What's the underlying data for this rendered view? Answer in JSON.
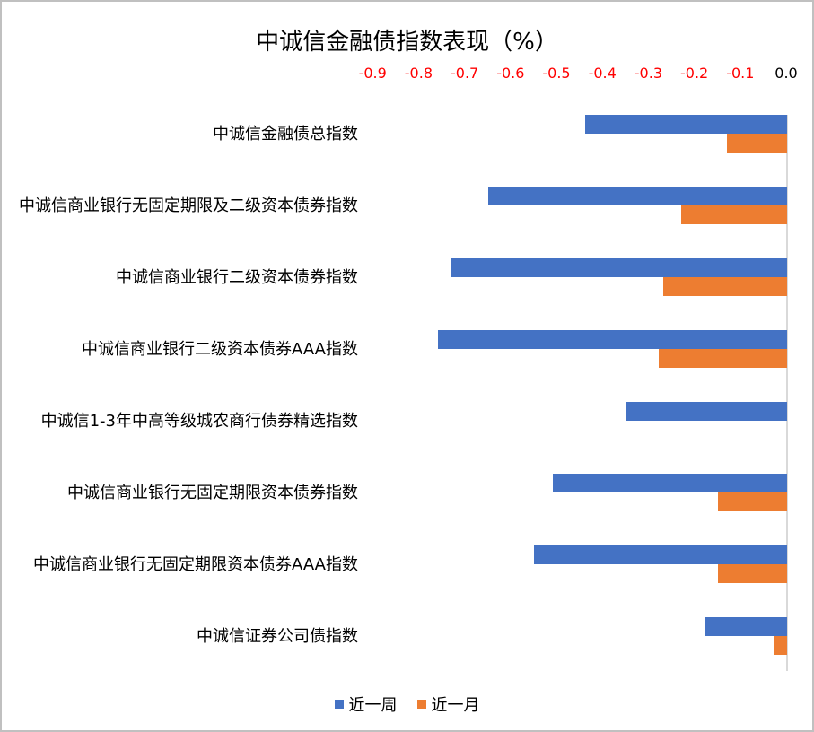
{
  "chart_data": {
    "type": "bar",
    "orientation": "horizontal",
    "title": "中诚信金融债指数表现（%）",
    "xlabel": "",
    "ylabel": "",
    "xlim": [
      -0.9,
      0.0
    ],
    "x_ticks": [
      "-0.9",
      "-0.8",
      "-0.7",
      "-0.6",
      "-0.5",
      "-0.4",
      "-0.3",
      "-0.2",
      "-0.1",
      "0.0"
    ],
    "x_tick_color": "#ff0000",
    "x_axis_position": "top",
    "grid": false,
    "legend_position": "bottom",
    "categories": [
      "中诚信金融债总指数",
      "中诚信商业银行无固定期限及二级资本债券指数",
      "中诚信商业银行二级资本债券指数",
      "中诚信商业银行二级资本债券AAA指数",
      "中诚信1-3年中高等级城农商行债券精选指数",
      "中诚信商业银行无固定期限资本债券指数",
      "中诚信商业银行无固定期限资本债券AAA指数",
      "中诚信证券公司债指数"
    ],
    "series": [
      {
        "name": "近一周",
        "color": "#4472c4",
        "values": [
          -0.44,
          -0.65,
          -0.73,
          -0.76,
          -0.35,
          -0.51,
          -0.55,
          -0.18
        ]
      },
      {
        "name": "近一月",
        "color": "#ed7d31",
        "values": [
          -0.13,
          -0.23,
          -0.27,
          -0.28,
          0.0,
          -0.15,
          -0.15,
          -0.03
        ]
      }
    ]
  },
  "legend": {
    "items": [
      {
        "label": "近一周",
        "color": "#4472c4"
      },
      {
        "label": "近一月",
        "color": "#ed7d31"
      }
    ]
  }
}
